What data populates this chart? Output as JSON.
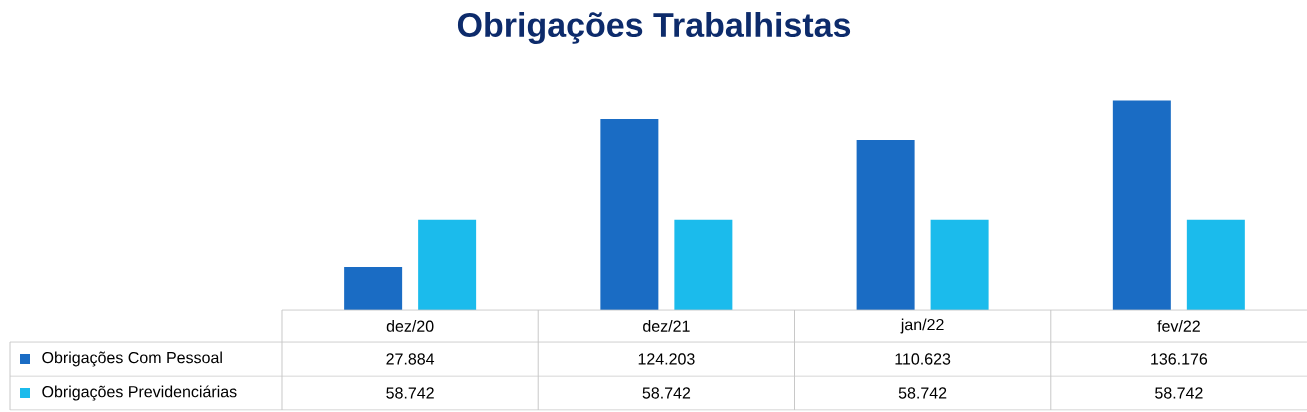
{
  "chart_data": {
    "type": "bar",
    "title": "Obrigações Trabalhistas",
    "categories": [
      "dez/20",
      "dez/21",
      "jan/22",
      "fev/22"
    ],
    "series": [
      {
        "name": "Obrigações Com Pessoal",
        "color": "#1a6cc4",
        "values": [
          27884,
          124203,
          110623,
          136176
        ],
        "value_labels": [
          "27.884",
          "124.203",
          "110.623",
          "136.176"
        ]
      },
      {
        "name": "Obrigações Previdenciárias",
        "color": "#1bbbec",
        "values": [
          58742,
          58742,
          58742,
          58742
        ],
        "value_labels": [
          "58.742",
          "58.742",
          "58.742",
          "58.742"
        ]
      }
    ],
    "legend": "left"
  }
}
